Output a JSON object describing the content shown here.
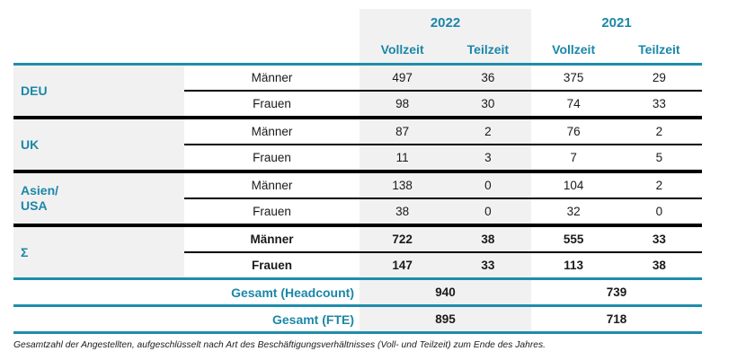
{
  "colors": {
    "teal_text": "#1b87a8",
    "teal_line": "#1f8dab",
    "black_line": "#000000",
    "band_gray": "#f2f1f1"
  },
  "header": {
    "years": [
      "2022",
      "2021"
    ],
    "subcols": [
      "Vollzeit",
      "Teilzeit",
      "Vollzeit",
      "Teilzeit"
    ]
  },
  "sections": [
    {
      "region_lines": [
        "DEU"
      ],
      "rows": [
        {
          "label": "Männer",
          "values": [
            "497",
            "36",
            "375",
            "29"
          ]
        },
        {
          "label": "Frauen",
          "values": [
            "98",
            "30",
            "74",
            "33"
          ]
        }
      ]
    },
    {
      "region_lines": [
        "UK"
      ],
      "rows": [
        {
          "label": "Männer",
          "values": [
            "87",
            "2",
            "76",
            "2"
          ]
        },
        {
          "label": "Frauen",
          "values": [
            "11",
            "3",
            "7",
            "5"
          ]
        }
      ]
    },
    {
      "region_lines": [
        "Asien/",
        "USA"
      ],
      "rows": [
        {
          "label": "Männer",
          "values": [
            "138",
            "0",
            "104",
            "2"
          ]
        },
        {
          "label": "Frauen",
          "values": [
            "38",
            "0",
            "32",
            "0"
          ]
        }
      ]
    },
    {
      "region_lines": [
        "Σ"
      ],
      "rows": [
        {
          "label": "Männer",
          "values": [
            "722",
            "38",
            "555",
            "33"
          ]
        },
        {
          "label": "Frauen",
          "values": [
            "147",
            "33",
            "113",
            "38"
          ]
        }
      ]
    }
  ],
  "totals": [
    {
      "label": "Gesamt (Headcount)",
      "value_2022": "940",
      "value_2021": "739"
    },
    {
      "label": "Gesamt (FTE)",
      "value_2022": "895",
      "value_2021": "718"
    }
  ],
  "caption": "Gesamtzahl der Angestellten, aufgeschlüsselt nach Art des Beschäftigungsverhältnisses (Voll- und Teilzeit) zum Ende des Jahres."
}
